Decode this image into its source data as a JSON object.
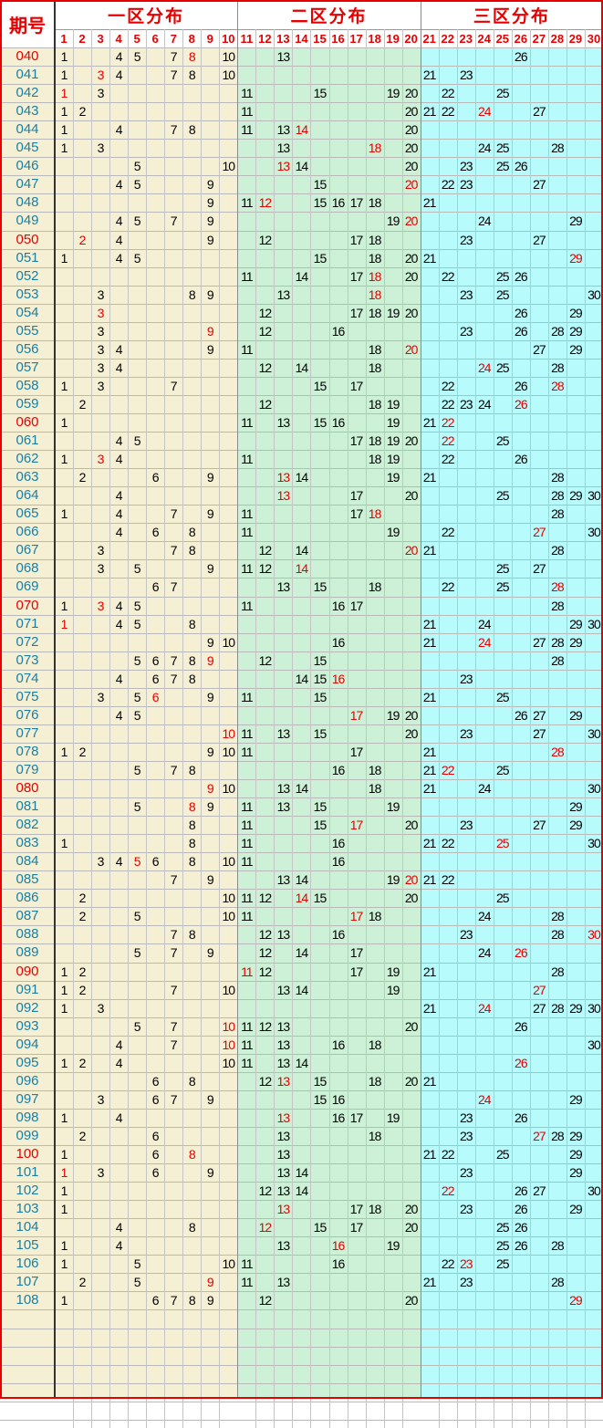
{
  "header": {
    "period_label": "期号",
    "zones": [
      {
        "label": "一区分布",
        "bg": "#f5efd4"
      },
      {
        "label": "二区分布",
        "bg": "#ccf1d6"
      },
      {
        "label": "三区分布",
        "bg": "#b7fbfd"
      }
    ],
    "numbers": [
      1,
      2,
      3,
      4,
      5,
      6,
      7,
      8,
      9,
      10,
      11,
      12,
      13,
      14,
      15,
      16,
      17,
      18,
      19,
      20,
      21,
      22,
      23,
      24,
      25,
      26,
      27,
      28,
      29,
      30
    ]
  },
  "colors": {
    "hot": "#e60000",
    "period_normal": "#1a7fa3",
    "period_hot": "#e60000",
    "grid": "#b9b9b9",
    "border": "#e60000"
  },
  "rows": [
    {
      "period": "040",
      "hot": true,
      "nums": [
        1,
        4,
        5,
        7,
        8,
        10,
        13,
        26
      ],
      "red": [
        8
      ]
    },
    {
      "period": "041",
      "hot": false,
      "nums": [
        1,
        3,
        4,
        7,
        8,
        10,
        21,
        23
      ],
      "red": [
        3
      ]
    },
    {
      "period": "042",
      "hot": false,
      "nums": [
        1,
        3,
        11,
        15,
        19,
        20,
        22,
        25
      ],
      "red": [
        1
      ]
    },
    {
      "period": "043",
      "hot": false,
      "nums": [
        1,
        2,
        11,
        20,
        21,
        22,
        24,
        27
      ],
      "red": [
        24
      ]
    },
    {
      "period": "044",
      "hot": false,
      "nums": [
        1,
        4,
        7,
        8,
        11,
        13,
        14,
        20
      ],
      "red": [
        14
      ]
    },
    {
      "period": "045",
      "hot": false,
      "nums": [
        1,
        3,
        13,
        18,
        20,
        24,
        25,
        28
      ],
      "red": [
        18
      ]
    },
    {
      "period": "046",
      "hot": false,
      "nums": [
        5,
        10,
        13,
        14,
        20,
        23,
        25,
        26
      ],
      "red": [
        13
      ]
    },
    {
      "period": "047",
      "hot": false,
      "nums": [
        4,
        5,
        9,
        15,
        20,
        22,
        23,
        27
      ],
      "red": [
        20
      ]
    },
    {
      "period": "048",
      "hot": false,
      "nums": [
        9,
        11,
        12,
        15,
        16,
        17,
        18,
        21
      ],
      "red": [
        12
      ]
    },
    {
      "period": "049",
      "hot": false,
      "nums": [
        4,
        5,
        7,
        9,
        19,
        20,
        24,
        29
      ],
      "red": [
        20
      ]
    },
    {
      "period": "050",
      "hot": true,
      "nums": [
        2,
        4,
        9,
        12,
        17,
        18,
        23,
        27
      ],
      "red": [
        2
      ]
    },
    {
      "period": "051",
      "hot": false,
      "nums": [
        1,
        4,
        5,
        15,
        18,
        20,
        21,
        29
      ],
      "red": [
        29
      ]
    },
    {
      "period": "052",
      "hot": false,
      "nums": [
        11,
        14,
        17,
        18,
        20,
        22,
        25,
        26
      ],
      "red": [
        18
      ]
    },
    {
      "period": "053",
      "hot": false,
      "nums": [
        3,
        8,
        9,
        13,
        18,
        23,
        25,
        30
      ],
      "red": [
        18
      ]
    },
    {
      "period": "054",
      "hot": false,
      "nums": [
        3,
        12,
        17,
        18,
        19,
        20,
        26,
        29
      ],
      "red": [
        3
      ]
    },
    {
      "period": "055",
      "hot": false,
      "nums": [
        3,
        9,
        12,
        16,
        23,
        26,
        28,
        29
      ],
      "red": [
        9
      ]
    },
    {
      "period": "056",
      "hot": false,
      "nums": [
        3,
        4,
        9,
        11,
        18,
        20,
        27,
        29
      ],
      "red": [
        20
      ]
    },
    {
      "period": "057",
      "hot": false,
      "nums": [
        3,
        4,
        12,
        14,
        18,
        24,
        25,
        28
      ],
      "red": [
        24
      ]
    },
    {
      "period": "058",
      "hot": false,
      "nums": [
        1,
        3,
        7,
        15,
        17,
        22,
        26,
        28
      ],
      "red": [
        28
      ]
    },
    {
      "period": "059",
      "hot": false,
      "nums": [
        2,
        12,
        18,
        19,
        22,
        23,
        24,
        26
      ],
      "red": [
        26
      ]
    },
    {
      "period": "060",
      "hot": true,
      "nums": [
        1,
        11,
        13,
        15,
        16,
        19,
        21,
        22
      ],
      "red": [
        22
      ]
    },
    {
      "period": "061",
      "hot": false,
      "nums": [
        4,
        5,
        17,
        18,
        19,
        20,
        22,
        25
      ],
      "red": [
        22
      ]
    },
    {
      "period": "062",
      "hot": false,
      "nums": [
        1,
        3,
        4,
        11,
        18,
        19,
        22,
        26
      ],
      "red": [
        3
      ]
    },
    {
      "period": "063",
      "hot": false,
      "nums": [
        2,
        6,
        9,
        13,
        14,
        19,
        21,
        28
      ],
      "red": [
        13
      ]
    },
    {
      "period": "064",
      "hot": false,
      "nums": [
        4,
        13,
        17,
        20,
        25,
        28,
        29,
        30
      ],
      "red": [
        13
      ]
    },
    {
      "period": "065",
      "hot": false,
      "nums": [
        1,
        4,
        7,
        9,
        11,
        17,
        18,
        28
      ],
      "red": [
        18
      ]
    },
    {
      "period": "066",
      "hot": false,
      "nums": [
        4,
        6,
        8,
        11,
        19,
        22,
        27,
        30
      ],
      "red": [
        27
      ]
    },
    {
      "period": "067",
      "hot": false,
      "nums": [
        3,
        7,
        8,
        12,
        14,
        20,
        21,
        28
      ],
      "red": [
        20
      ]
    },
    {
      "period": "068",
      "hot": false,
      "nums": [
        3,
        5,
        9,
        11,
        12,
        14,
        25,
        27
      ],
      "red": [
        14
      ]
    },
    {
      "period": "069",
      "hot": false,
      "nums": [
        6,
        7,
        13,
        15,
        18,
        22,
        25,
        28
      ],
      "red": [
        28
      ]
    },
    {
      "period": "070",
      "hot": true,
      "nums": [
        1,
        3,
        4,
        5,
        11,
        16,
        17,
        28
      ],
      "red": [
        3
      ]
    },
    {
      "period": "071",
      "hot": false,
      "nums": [
        1,
        4,
        5,
        8,
        21,
        24,
        29,
        30
      ],
      "red": [
        1
      ]
    },
    {
      "period": "072",
      "hot": false,
      "nums": [
        9,
        10,
        16,
        21,
        24,
        27,
        28,
        29
      ],
      "red": [
        24
      ]
    },
    {
      "period": "073",
      "hot": false,
      "nums": [
        5,
        6,
        7,
        8,
        9,
        12,
        15,
        28
      ],
      "red": [
        9
      ]
    },
    {
      "period": "074",
      "hot": false,
      "nums": [
        4,
        6,
        7,
        8,
        14,
        15,
        16,
        23
      ],
      "red": [
        16
      ]
    },
    {
      "period": "075",
      "hot": false,
      "nums": [
        3,
        5,
        6,
        9,
        11,
        15,
        21,
        25
      ],
      "red": [
        6
      ]
    },
    {
      "period": "076",
      "hot": false,
      "nums": [
        4,
        5,
        17,
        19,
        20,
        26,
        27,
        29
      ],
      "red": [
        17
      ]
    },
    {
      "period": "077",
      "hot": false,
      "nums": [
        10,
        11,
        13,
        15,
        20,
        23,
        27,
        30
      ],
      "red": [
        10
      ]
    },
    {
      "period": "078",
      "hot": false,
      "nums": [
        1,
        2,
        9,
        10,
        11,
        17,
        21,
        28
      ],
      "red": [
        28
      ]
    },
    {
      "period": "079",
      "hot": false,
      "nums": [
        5,
        7,
        8,
        16,
        18,
        21,
        22,
        25
      ],
      "red": [
        22
      ]
    },
    {
      "period": "080",
      "hot": true,
      "nums": [
        9,
        10,
        13,
        14,
        18,
        21,
        24,
        30
      ],
      "red": [
        9
      ]
    },
    {
      "period": "081",
      "hot": false,
      "nums": [
        5,
        8,
        9,
        11,
        13,
        15,
        19,
        29
      ],
      "red": [
        8
      ]
    },
    {
      "period": "082",
      "hot": false,
      "nums": [
        8,
        11,
        15,
        17,
        20,
        23,
        27,
        29
      ],
      "red": [
        17
      ]
    },
    {
      "period": "083",
      "hot": false,
      "nums": [
        1,
        8,
        11,
        16,
        21,
        22,
        25,
        30
      ],
      "red": [
        25
      ]
    },
    {
      "period": "084",
      "hot": false,
      "nums": [
        3,
        4,
        5,
        6,
        8,
        10,
        11,
        16
      ],
      "red": [
        5
      ]
    },
    {
      "period": "085",
      "hot": false,
      "nums": [
        7,
        9,
        13,
        14,
        19,
        20,
        21,
        22
      ],
      "red": [
        20
      ]
    },
    {
      "period": "086",
      "hot": false,
      "nums": [
        2,
        10,
        11,
        12,
        14,
        15,
        20,
        25
      ],
      "red": [
        14
      ]
    },
    {
      "period": "087",
      "hot": false,
      "nums": [
        2,
        5,
        10,
        11,
        17,
        18,
        24,
        28
      ],
      "red": [
        17
      ]
    },
    {
      "period": "088",
      "hot": false,
      "nums": [
        7,
        8,
        12,
        13,
        16,
        23,
        28,
        30
      ],
      "red": [
        30
      ]
    },
    {
      "period": "089",
      "hot": false,
      "nums": [
        5,
        7,
        9,
        12,
        14,
        17,
        24,
        26
      ],
      "red": [
        26
      ]
    },
    {
      "period": "090",
      "hot": true,
      "nums": [
        1,
        2,
        11,
        12,
        17,
        19,
        21,
        28
      ],
      "red": [
        11
      ]
    },
    {
      "period": "091",
      "hot": false,
      "nums": [
        1,
        2,
        7,
        10,
        13,
        14,
        19,
        27
      ],
      "red": [
        27
      ]
    },
    {
      "period": "092",
      "hot": false,
      "nums": [
        1,
        3,
        21,
        24,
        27,
        28,
        29,
        30
      ],
      "red": [
        24
      ]
    },
    {
      "period": "093",
      "hot": false,
      "nums": [
        5,
        7,
        10,
        11,
        12,
        13,
        20,
        26
      ],
      "red": [
        10
      ]
    },
    {
      "period": "094",
      "hot": false,
      "nums": [
        4,
        7,
        10,
        11,
        13,
        16,
        18,
        30
      ],
      "red": [
        10
      ]
    },
    {
      "period": "095",
      "hot": false,
      "nums": [
        1,
        2,
        4,
        10,
        11,
        13,
        14,
        26
      ],
      "red": [
        26
      ]
    },
    {
      "period": "096",
      "hot": false,
      "nums": [
        6,
        8,
        12,
        13,
        15,
        18,
        20,
        21
      ],
      "red": [
        13
      ]
    },
    {
      "period": "097",
      "hot": false,
      "nums": [
        3,
        6,
        7,
        9,
        15,
        16,
        24,
        29
      ],
      "red": [
        24
      ]
    },
    {
      "period": "098",
      "hot": false,
      "nums": [
        1,
        4,
        13,
        16,
        17,
        19,
        23,
        26
      ],
      "red": [
        13
      ]
    },
    {
      "period": "099",
      "hot": false,
      "nums": [
        2,
        6,
        13,
        18,
        23,
        27,
        28,
        29
      ],
      "red": [
        27
      ]
    },
    {
      "period": "100",
      "hot": true,
      "nums": [
        1,
        6,
        8,
        13,
        21,
        22,
        25,
        29
      ],
      "red": [
        8
      ]
    },
    {
      "period": "101",
      "hot": false,
      "nums": [
        1,
        3,
        6,
        9,
        13,
        14,
        23,
        29
      ],
      "red": [
        1
      ]
    },
    {
      "period": "102",
      "hot": false,
      "nums": [
        1,
        12,
        13,
        14,
        22,
        26,
        27,
        30
      ],
      "red": [
        22
      ]
    },
    {
      "period": "103",
      "hot": false,
      "nums": [
        1,
        13,
        17,
        18,
        20,
        23,
        26,
        29
      ],
      "red": [
        13
      ]
    },
    {
      "period": "104",
      "hot": false,
      "nums": [
        4,
        8,
        12,
        15,
        17,
        20,
        25,
        26
      ],
      "red": [
        12
      ]
    },
    {
      "period": "105",
      "hot": false,
      "nums": [
        1,
        4,
        13,
        16,
        19,
        25,
        26,
        28
      ],
      "red": [
        16
      ]
    },
    {
      "period": "106",
      "hot": false,
      "nums": [
        1,
        5,
        10,
        11,
        16,
        22,
        23,
        25
      ],
      "red": [
        23
      ]
    },
    {
      "period": "107",
      "hot": false,
      "nums": [
        2,
        5,
        9,
        11,
        13,
        21,
        23,
        28
      ],
      "red": [
        9
      ]
    },
    {
      "period": "108",
      "hot": false,
      "nums": [
        1,
        6,
        7,
        8,
        9,
        12,
        20,
        29
      ],
      "red": [
        29
      ]
    }
  ],
  "empty_rows": 6
}
